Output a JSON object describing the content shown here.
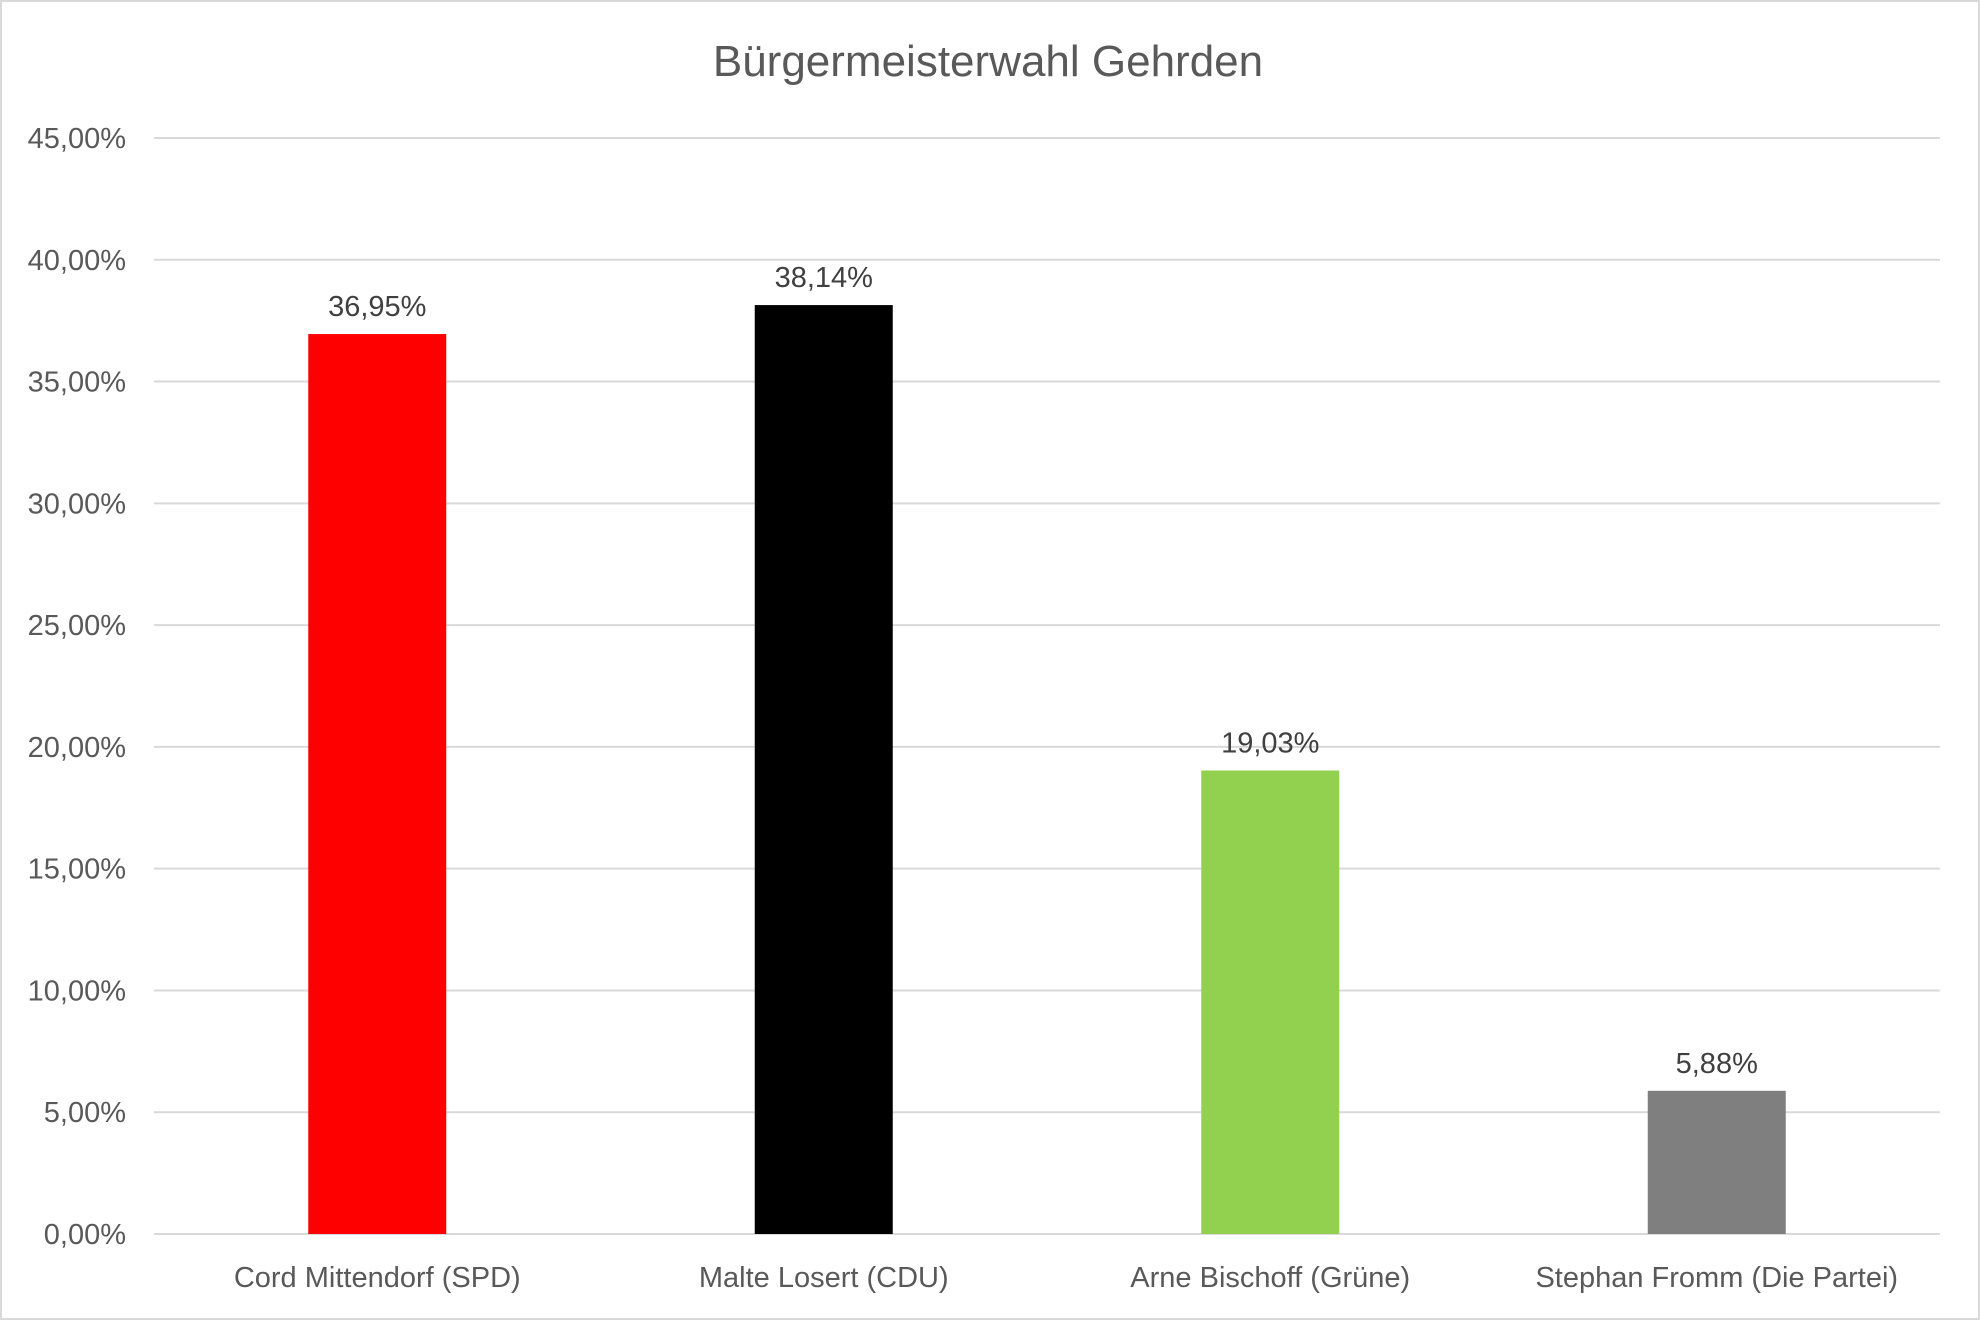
{
  "chart_data": {
    "type": "bar",
    "title": "Bürgermeisterwahl Gehrden",
    "xlabel": "",
    "ylabel": "",
    "categories": [
      "Cord Mittendorf (SPD)",
      "Malte Losert (CDU)",
      "Arne Bischoff (Grüne)",
      "Stephan Fromm (Die Partei)"
    ],
    "values": [
      36.95,
      38.14,
      19.03,
      5.88
    ],
    "data_labels": [
      "36,95%",
      "38,14%",
      "19,03%",
      "5,88%"
    ],
    "colors": [
      "#ff0000",
      "#000000",
      "#92d050",
      "#7f7f7f"
    ],
    "ylim": [
      0,
      45
    ],
    "yticks": [
      0,
      5,
      10,
      15,
      20,
      25,
      30,
      35,
      40,
      45
    ],
    "ytick_labels": [
      "0,00%",
      "5,00%",
      "10,00%",
      "15,00%",
      "20,00%",
      "25,00%",
      "30,00%",
      "35,00%",
      "40,00%",
      "45,00%"
    ],
    "grid": true,
    "legend": "none"
  }
}
